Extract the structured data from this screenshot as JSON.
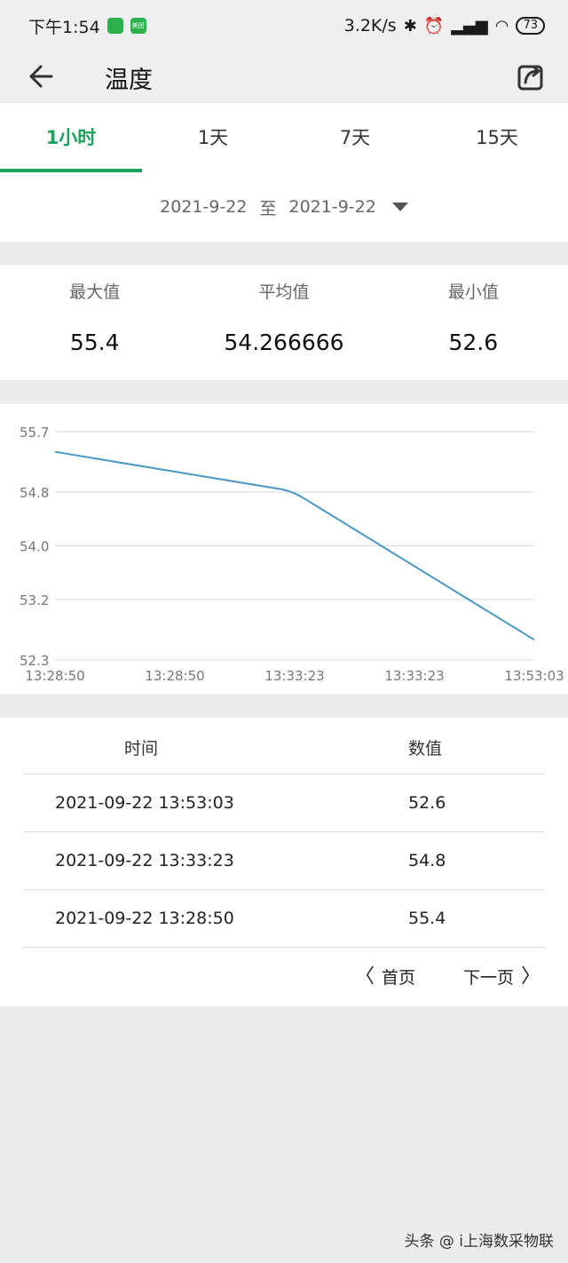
{
  "status_bar": {
    "time": "下午1:54",
    "badge1": "",
    "badge2": "美团",
    "net_speed": "3.2K/s",
    "battery": "73"
  },
  "header": {
    "title": "温度"
  },
  "tabs": [
    {
      "label": "1小时",
      "active": true
    },
    {
      "label": "1天",
      "active": false
    },
    {
      "label": "7天",
      "active": false
    },
    {
      "label": "15天",
      "active": false
    }
  ],
  "date_range": {
    "start": "2021-9-22",
    "separator": "至",
    "end": "2021-9-22"
  },
  "stats": {
    "max_label": "最大值",
    "max_value": "55.4",
    "avg_label": "平均值",
    "avg_value": "54.266666",
    "min_label": "最小值",
    "min_value": "52.6"
  },
  "chart_data": {
    "type": "line",
    "x": [
      "13:28:50",
      "13:33:23",
      "13:53:03"
    ],
    "x_tick_labels": [
      "13:28:50",
      "13:28:50",
      "13:33:23",
      "13:33:23",
      "13:53:03"
    ],
    "series": [
      {
        "values": [
          55.4,
          54.8,
          52.6
        ],
        "color": "#4a97c4"
      }
    ],
    "y_ticks": [
      "55.7",
      "54.8",
      "54.0",
      "53.2",
      "52.3"
    ],
    "ylim": [
      52.3,
      55.7
    ],
    "grid": true,
    "title": "",
    "xlabel": "",
    "ylabel": ""
  },
  "table": {
    "headers": {
      "time": "时间",
      "value": "数值"
    },
    "rows": [
      {
        "time": "2021-09-22 13:53:03",
        "value": "52.6"
      },
      {
        "time": "2021-09-22 13:33:23",
        "value": "54.8"
      },
      {
        "time": "2021-09-22 13:28:50",
        "value": "55.4"
      }
    ]
  },
  "pager": {
    "first_label": "首页",
    "next_label": "下一页"
  },
  "watermark": "头条 @ i上海数采物联"
}
